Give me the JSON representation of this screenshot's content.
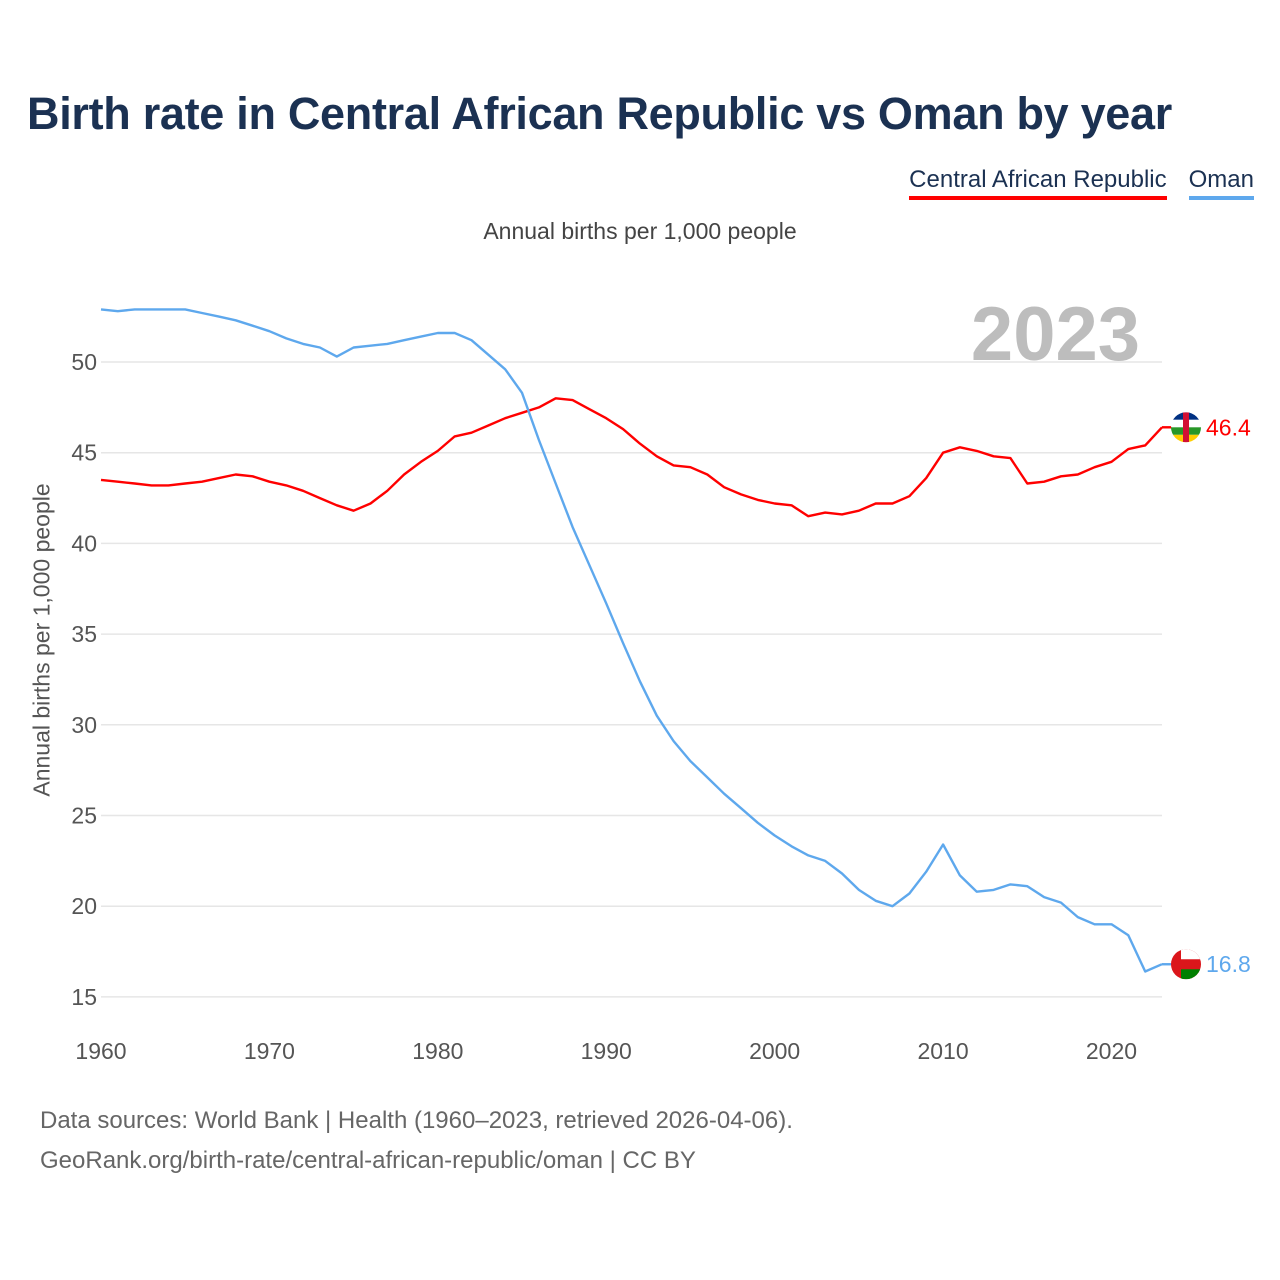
{
  "title": "Birth rate in Central African Republic vs Oman by year",
  "subtitle": "Annual births per 1,000 people",
  "footer": {
    "line1": "Data sources: World Bank | Health (1960–2023, retrieved 2026-04-06).",
    "line2": "GeoRank.org/birth-rate/central-african-republic/oman | CC BY"
  },
  "chart_data": {
    "type": "line",
    "title": "Birth rate in Central African Republic vs Oman by year",
    "subtitle": "Annual births per 1,000 people",
    "xlabel": "",
    "ylabel": "Annual births per 1,000 people",
    "current_year_label": "2023",
    "xlim": [
      1960,
      2023
    ],
    "ylim": [
      15,
      53.2
    ],
    "x_ticks": [
      1960,
      1970,
      1980,
      1990,
      2000,
      2010,
      2020
    ],
    "y_ticks": [
      15,
      20,
      25,
      30,
      35,
      40,
      45,
      50
    ],
    "grid": true,
    "legend_position": "top-right",
    "x": [
      1960,
      1961,
      1962,
      1963,
      1964,
      1965,
      1966,
      1967,
      1968,
      1969,
      1970,
      1971,
      1972,
      1973,
      1974,
      1975,
      1976,
      1977,
      1978,
      1979,
      1980,
      1981,
      1982,
      1983,
      1984,
      1985,
      1986,
      1987,
      1988,
      1989,
      1990,
      1991,
      1992,
      1993,
      1994,
      1995,
      1996,
      1997,
      1998,
      1999,
      2000,
      2001,
      2002,
      2003,
      2004,
      2005,
      2006,
      2007,
      2008,
      2009,
      2010,
      2011,
      2012,
      2013,
      2014,
      2015,
      2016,
      2017,
      2018,
      2019,
      2020,
      2021,
      2022,
      2023
    ],
    "series": [
      {
        "name": "Central African Republic",
        "color": "#ff0000",
        "end_label": "46.4",
        "values": [
          43.5,
          43.4,
          43.3,
          43.2,
          43.2,
          43.3,
          43.4,
          43.6,
          43.8,
          43.7,
          43.4,
          43.2,
          42.9,
          42.5,
          42.1,
          41.8,
          42.2,
          42.9,
          43.8,
          44.5,
          45.1,
          45.9,
          46.1,
          46.5,
          46.9,
          47.2,
          47.5,
          48.0,
          47.9,
          47.4,
          46.9,
          46.3,
          45.5,
          44.8,
          44.3,
          44.2,
          43.8,
          43.1,
          42.7,
          42.4,
          42.2,
          42.1,
          41.5,
          41.7,
          41.6,
          41.8,
          42.2,
          42.2,
          42.6,
          43.6,
          45.0,
          45.3,
          45.1,
          44.8,
          44.7,
          43.3,
          43.4,
          43.7,
          43.8,
          44.2,
          44.5,
          45.2,
          45.4,
          46.4
        ]
      },
      {
        "name": "Oman",
        "color": "#5ea8ed",
        "end_label": "16.8",
        "values": [
          52.9,
          52.8,
          52.9,
          52.9,
          52.9,
          52.9,
          52.7,
          52.5,
          52.3,
          52.0,
          51.7,
          51.3,
          51.0,
          50.8,
          50.3,
          50.8,
          50.9,
          51.0,
          51.2,
          51.4,
          51.6,
          51.6,
          51.2,
          50.4,
          49.6,
          48.3,
          45.7,
          43.3,
          40.9,
          38.8,
          36.7,
          34.5,
          32.4,
          30.5,
          29.1,
          28.0,
          27.1,
          26.2,
          25.4,
          24.6,
          23.9,
          23.3,
          22.8,
          22.5,
          21.8,
          20.9,
          20.3,
          20.0,
          20.7,
          21.9,
          23.4,
          21.7,
          20.8,
          20.9,
          21.2,
          21.1,
          20.5,
          20.2,
          19.4,
          19.0,
          19.0,
          18.4,
          16.4,
          16.8
        ]
      }
    ]
  }
}
